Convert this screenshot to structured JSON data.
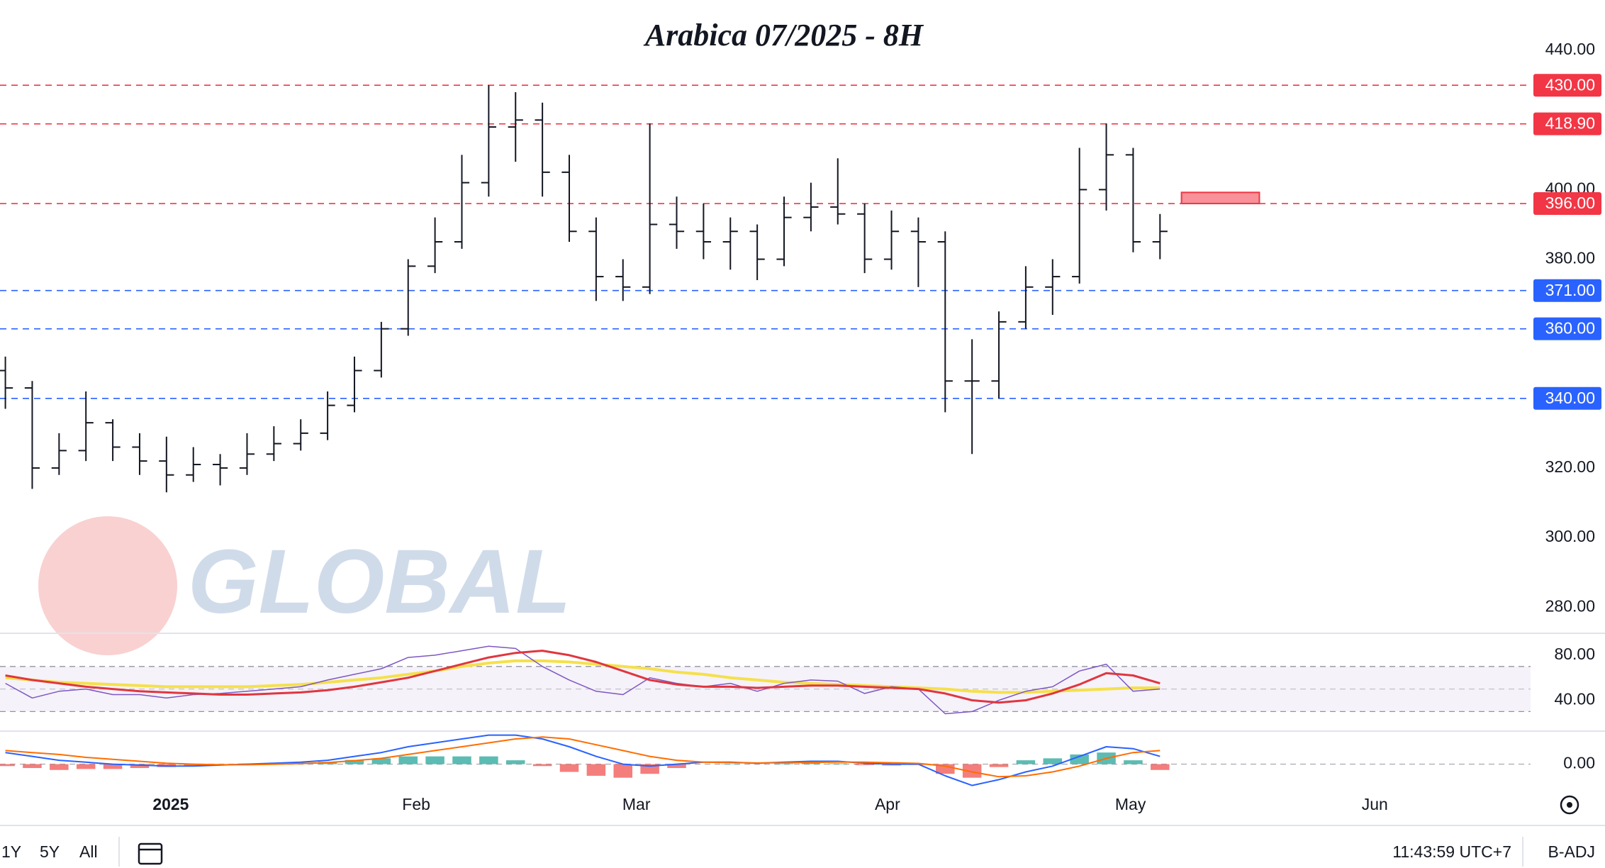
{
  "chart_data": [
    {
      "type": "ohlc",
      "title": "Arabica 07/2025 - 8H",
      "color": "#131722",
      "open": [
        348,
        343,
        320,
        325,
        333,
        326,
        322,
        318,
        321,
        320,
        324,
        327,
        330,
        338,
        348,
        360,
        378,
        385,
        402,
        418,
        420,
        405,
        388,
        375,
        372,
        390,
        388,
        385,
        388,
        380,
        392,
        395,
        393,
        380,
        388,
        385,
        345,
        345,
        362,
        372,
        375,
        400,
        410,
        385
      ],
      "high": [
        352,
        345,
        330,
        342,
        334,
        330,
        329,
        326,
        324,
        330,
        332,
        334,
        342,
        352,
        362,
        380,
        392,
        410,
        430,
        428,
        425,
        410,
        392,
        380,
        419,
        398,
        396,
        392,
        390,
        398,
        402,
        409,
        396,
        394,
        392,
        388,
        357,
        365,
        378,
        380,
        412,
        419,
        412,
        393
      ],
      "low": [
        337,
        314,
        318,
        322,
        322,
        318,
        313,
        316,
        315,
        318,
        322,
        325,
        328,
        336,
        346,
        358,
        376,
        383,
        398,
        408,
        398,
        385,
        368,
        368,
        370,
        383,
        380,
        377,
        374,
        378,
        388,
        390,
        376,
        377,
        372,
        336,
        324,
        340,
        360,
        364,
        373,
        394,
        382,
        380
      ],
      "close": [
        343,
        320,
        325,
        333,
        326,
        322,
        318,
        321,
        320,
        324,
        327,
        330,
        338,
        348,
        360,
        378,
        385,
        402,
        418,
        420,
        405,
        388,
        375,
        372,
        390,
        388,
        385,
        388,
        380,
        392,
        395,
        393,
        380,
        388,
        385,
        345,
        345,
        362,
        372,
        375,
        400,
        410,
        385,
        388
      ],
      "xlim": [
        -0.2,
        56.8
      ],
      "xticks": [
        {
          "value": 6.16,
          "label": "2025"
        },
        {
          "value": 15.3,
          "label": "Feb"
        },
        {
          "value": 23.5,
          "label": "Mar"
        },
        {
          "value": 32.85,
          "label": "Apr"
        },
        {
          "value": 41.9,
          "label": "May"
        },
        {
          "value": 51.0,
          "label": "Jun"
        }
      ],
      "ylim": [
        272.7,
        454.5
      ],
      "yticks": [
        {
          "value": 280,
          "label": "280.00"
        },
        {
          "value": 300,
          "label": "300.00"
        },
        {
          "value": 320,
          "label": "320.00"
        },
        {
          "value": 380,
          "label": "380.00"
        },
        {
          "value": 400,
          "label": "400.00"
        },
        {
          "value": 440,
          "label": "440.00"
        }
      ],
      "levels": [
        {
          "value": 430,
          "label": "430.00",
          "color": "#f23645"
        },
        {
          "value": 418.9,
          "label": "418.90",
          "color": "#f23645"
        },
        {
          "value": 396,
          "label": "396.00",
          "color": "#f23645"
        },
        {
          "value": 371,
          "label": "371.00",
          "color": "#2962ff"
        },
        {
          "value": 360,
          "label": "360.00",
          "color": "#2962ff"
        },
        {
          "value": 340,
          "label": "340.00",
          "color": "#2962ff"
        }
      ],
      "zone": {
        "x": [
          43.8,
          46.7
        ],
        "y": [
          396,
          399.2
        ],
        "color": "#f23645"
      },
      "watermark": "GLOBAL"
    },
    {
      "type": "line",
      "ylim": [
        14.5,
        98.2
      ],
      "yticks": [
        {
          "value": 40,
          "label": "40.00"
        },
        {
          "value": 80,
          "label": "80.00"
        }
      ],
      "bands": [
        30,
        50,
        70
      ],
      "series": [
        {
          "color": "#f5e04b",
          "width": 4,
          "values": [
            60,
            58,
            56,
            55,
            54,
            53,
            52,
            52,
            52,
            52,
            53,
            54,
            56,
            58,
            60,
            63,
            66,
            70,
            73,
            75,
            75,
            74,
            72,
            70,
            68,
            65,
            63,
            60,
            58,
            56,
            55,
            54,
            53,
            52,
            51,
            50,
            48,
            47,
            47,
            48,
            49,
            50,
            51,
            51
          ]
        },
        {
          "color": "#7e57c2",
          "width": 1.5,
          "values": [
            55,
            42,
            48,
            50,
            45,
            45,
            42,
            45,
            46,
            48,
            50,
            52,
            58,
            63,
            68,
            78,
            80,
            84,
            88,
            86,
            70,
            58,
            48,
            45,
            60,
            55,
            52,
            55,
            48,
            55,
            58,
            57,
            46,
            52,
            50,
            28,
            30,
            40,
            48,
            52,
            66,
            72,
            48,
            50
          ]
        },
        {
          "color": "#e0363f",
          "width": 3,
          "values": [
            62,
            58,
            55,
            52,
            50,
            48,
            47,
            46,
            45,
            45,
            46,
            47,
            49,
            52,
            56,
            60,
            66,
            72,
            78,
            82,
            84,
            80,
            74,
            66,
            58,
            54,
            52,
            52,
            51,
            52,
            53,
            53,
            52,
            51,
            50,
            46,
            40,
            38,
            40,
            46,
            54,
            64,
            62,
            55
          ]
        }
      ]
    },
    {
      "type": "macd",
      "ylim": [
        -12.6,
        16.3
      ],
      "yticks": [
        {
          "value": 0,
          "label": "0.00"
        }
      ],
      "histogram": [
        -1,
        -2,
        -3,
        -2.5,
        -2.5,
        -2,
        -1.5,
        -1,
        -0.2,
        0.3,
        0.5,
        0.7,
        1.2,
        2.2,
        3,
        4,
        4,
        4,
        4,
        2,
        -1,
        -4,
        -6,
        -7,
        -5,
        -2,
        0,
        0.2,
        -0.1,
        0.3,
        0.6,
        0.4,
        -0.5,
        -0.7,
        -0.4,
        -5,
        -7,
        -1.5,
        2,
        3,
        5,
        6,
        2,
        -3
      ],
      "up_color": "#26a69a",
      "down_color": "#ef5350",
      "series": [
        {
          "color": "#2962ff",
          "values": [
            6,
            4,
            2,
            1,
            0,
            -0.5,
            -1,
            -1,
            -0.5,
            0,
            0.5,
            1,
            2,
            4,
            6,
            9,
            11,
            13,
            15,
            15,
            13,
            9,
            4,
            0,
            -1,
            0,
            1,
            1,
            0.5,
            1,
            1.5,
            1.5,
            0.5,
            0,
            0,
            -6,
            -11,
            -8,
            -4,
            -1,
            4,
            9,
            8,
            4
          ]
        },
        {
          "color": "#ff6d00",
          "values": [
            7,
            6,
            5,
            3.5,
            2.5,
            1.5,
            0.5,
            0,
            -0.3,
            -0.3,
            0,
            0.3,
            0.8,
            1.8,
            3,
            5,
            7,
            9,
            11,
            13,
            14,
            13,
            10,
            7,
            4,
            2,
            1,
            0.8,
            0.6,
            0.7,
            0.9,
            1.1,
            1,
            0.7,
            0.4,
            -1,
            -4,
            -6.5,
            -6,
            -4,
            -1,
            3,
            6,
            7
          ]
        }
      ]
    }
  ],
  "toolbar": {
    "ranges": [
      "1Y",
      "5Y",
      "All"
    ],
    "time": "11:43:59 UTC+7",
    "adjust": "B-ADJ"
  }
}
